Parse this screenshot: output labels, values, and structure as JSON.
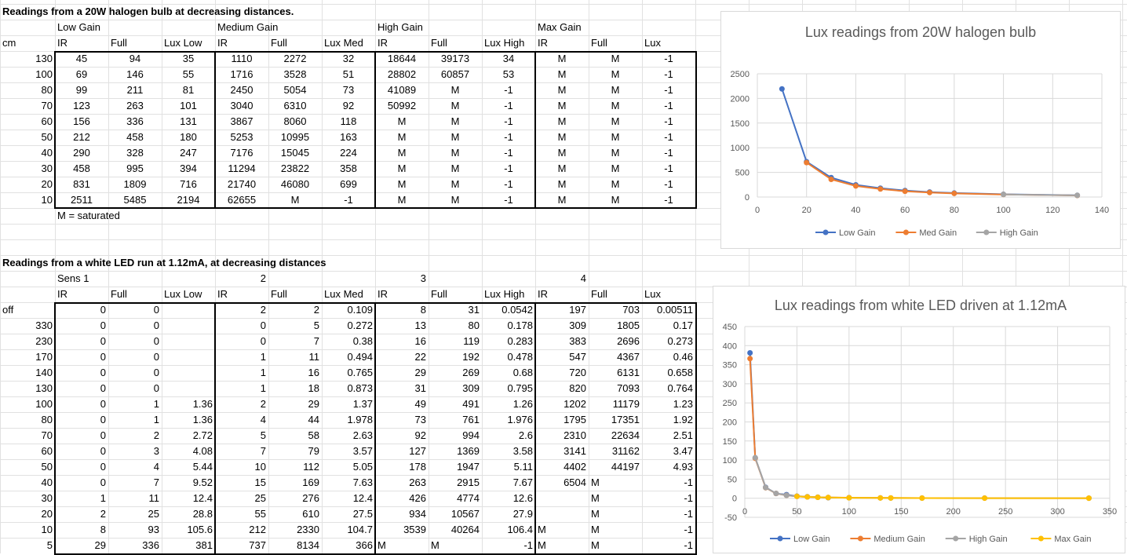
{
  "sheet": {
    "halogen": {
      "title": "Readings from a 20W halogen bulb at decreasing distances.",
      "gain_headers": [
        "Low Gain",
        "Medium Gain",
        "High Gain",
        "Max Gain"
      ],
      "col_headers": [
        "cm",
        "IR",
        "Full",
        "Lux Low",
        "IR",
        "Full",
        "Lux Med",
        "IR",
        "Full",
        "Lux High",
        "IR",
        "Full",
        "Lux"
      ],
      "rows": [
        [
          "130",
          "45",
          "94",
          "35",
          "1110",
          "2272",
          "32",
          "18644",
          "39173",
          "34",
          "M",
          "M",
          "-1"
        ],
        [
          "100",
          "69",
          "146",
          "55",
          "1716",
          "3528",
          "51",
          "28802",
          "60857",
          "53",
          "M",
          "M",
          "-1"
        ],
        [
          "80",
          "99",
          "211",
          "81",
          "2450",
          "5054",
          "73",
          "41089",
          "M",
          "-1",
          "M",
          "M",
          "-1"
        ],
        [
          "70",
          "123",
          "263",
          "101",
          "3040",
          "6310",
          "92",
          "50992",
          "M",
          "-1",
          "M",
          "M",
          "-1"
        ],
        [
          "60",
          "156",
          "336",
          "131",
          "3867",
          "8060",
          "118",
          "M",
          "M",
          "-1",
          "M",
          "M",
          "-1"
        ],
        [
          "50",
          "212",
          "458",
          "180",
          "5253",
          "10995",
          "163",
          "M",
          "M",
          "-1",
          "M",
          "M",
          "-1"
        ],
        [
          "40",
          "290",
          "328",
          "247",
          "7176",
          "15045",
          "224",
          "M",
          "M",
          "-1",
          "M",
          "M",
          "-1"
        ],
        [
          "30",
          "458",
          "995",
          "394",
          "11294",
          "23822",
          "358",
          "M",
          "M",
          "-1",
          "M",
          "M",
          "-1"
        ],
        [
          "20",
          "831",
          "1809",
          "716",
          "21740",
          "46080",
          "699",
          "M",
          "M",
          "-1",
          "M",
          "M",
          "-1"
        ],
        [
          "10",
          "2511",
          "5485",
          "2194",
          "62655",
          "M",
          "-1",
          "M",
          "M",
          "-1",
          "M",
          "M",
          "-1"
        ]
      ],
      "note": "M = saturated"
    },
    "led": {
      "title": "Readings from a white LED run at 1.12mA, at decreasing distances",
      "sens_headers": [
        "Sens 1",
        "2",
        "3",
        "4"
      ],
      "col_headers": [
        "IR",
        "Full",
        "Lux Low",
        "IR",
        "Full",
        "Lux Med",
        "IR",
        "Full",
        "Lux High",
        "IR",
        "Full",
        "Lux"
      ],
      "rows": [
        [
          "off",
          "0",
          "0",
          "",
          "2",
          "2",
          "0.109",
          "8",
          "31",
          "0.0542",
          "197",
          "703",
          "0.00511"
        ],
        [
          "330",
          "0",
          "0",
          "",
          "0",
          "5",
          "0.272",
          "13",
          "80",
          "0.178",
          "309",
          "1805",
          "0.17"
        ],
        [
          "230",
          "0",
          "0",
          "",
          "0",
          "7",
          "0.38",
          "16",
          "119",
          "0.283",
          "383",
          "2696",
          "0.273"
        ],
        [
          "170",
          "0",
          "0",
          "",
          "1",
          "11",
          "0.494",
          "22",
          "192",
          "0.478",
          "547",
          "4367",
          "0.46"
        ],
        [
          "140",
          "0",
          "0",
          "",
          "1",
          "16",
          "0.765",
          "29",
          "269",
          "0.68",
          "720",
          "6131",
          "0.658"
        ],
        [
          "130",
          "0",
          "0",
          "",
          "1",
          "18",
          "0.873",
          "31",
          "309",
          "0.795",
          "820",
          "7093",
          "0.764"
        ],
        [
          "100",
          "0",
          "1",
          "1.36",
          "2",
          "29",
          "1.37",
          "49",
          "491",
          "1.26",
          "1202",
          "11179",
          "1.23"
        ],
        [
          "80",
          "0",
          "1",
          "1.36",
          "4",
          "44",
          "1.978",
          "73",
          "761",
          "1.976",
          "1795",
          "17351",
          "1.92"
        ],
        [
          "70",
          "0",
          "2",
          "2.72",
          "5",
          "58",
          "2.63",
          "92",
          "994",
          "2.6",
          "2310",
          "22634",
          "2.51"
        ],
        [
          "60",
          "0",
          "3",
          "4.08",
          "7",
          "79",
          "3.57",
          "127",
          "1369",
          "3.58",
          "3141",
          "31162",
          "3.47"
        ],
        [
          "50",
          "0",
          "4",
          "5.44",
          "10",
          "112",
          "5.05",
          "178",
          "1947",
          "5.11",
          "4402",
          "44197",
          "4.93"
        ],
        [
          "40",
          "0",
          "7",
          "9.52",
          "15",
          "169",
          "7.63",
          "263",
          "2915",
          "7.67",
          "6504",
          "M",
          "-1"
        ],
        [
          "30",
          "1",
          "11",
          "12.4",
          "25",
          "276",
          "12.4",
          "426",
          "4774",
          "12.6",
          "",
          "M",
          "-1"
        ],
        [
          "20",
          "2",
          "25",
          "28.8",
          "55",
          "610",
          "27.5",
          "934",
          "10567",
          "27.9",
          "",
          "M",
          "-1"
        ],
        [
          "10",
          "8",
          "93",
          "105.6",
          "212",
          "2330",
          "104.7",
          "3539",
          "40264",
          "106.4",
          "M",
          "M",
          "-1"
        ],
        [
          "5",
          "29",
          "336",
          "381",
          "737",
          "8134",
          "366",
          "M",
          "M",
          "-1",
          "M",
          "M",
          "-1"
        ]
      ]
    }
  },
  "chart_data": [
    {
      "type": "line",
      "title": "Lux readings from 20W halogen bulb",
      "xlim": [
        0,
        140
      ],
      "ylim": [
        0,
        2500
      ],
      "xticks": [
        "0",
        "20",
        "40",
        "60",
        "80",
        "100",
        "120",
        "140"
      ],
      "yticks": [
        "0",
        "500",
        "1000",
        "1500",
        "2000",
        "2500"
      ],
      "legend_position": "bottom",
      "series": [
        {
          "name": "Low Gain",
          "color": "#4472C4",
          "points": [
            [
              10,
              2194
            ],
            [
              20,
              716
            ],
            [
              30,
              394
            ],
            [
              40,
              247
            ],
            [
              50,
              180
            ],
            [
              60,
              131
            ],
            [
              70,
              101
            ],
            [
              80,
              81
            ],
            [
              100,
              55
            ],
            [
              130,
              35
            ]
          ]
        },
        {
          "name": "Med Gain",
          "color": "#ED7D31",
          "points": [
            [
              20,
              699
            ],
            [
              30,
              358
            ],
            [
              40,
              224
            ],
            [
              50,
              163
            ],
            [
              60,
              118
            ],
            [
              70,
              92
            ],
            [
              80,
              73
            ],
            [
              100,
              51
            ],
            [
              130,
              32
            ]
          ]
        },
        {
          "name": "High Gain",
          "color": "#A5A5A5",
          "points": [
            [
              100,
              53
            ],
            [
              130,
              34
            ]
          ]
        }
      ]
    },
    {
      "type": "line",
      "title": "Lux readings from white LED driven at 1.12mA",
      "xlim": [
        0,
        350
      ],
      "ylim": [
        -50,
        450
      ],
      "xticks": [
        "0",
        "50",
        "100",
        "150",
        "200",
        "250",
        "300",
        "350"
      ],
      "yticks": [
        "-50",
        "0",
        "50",
        "100",
        "150",
        "200",
        "250",
        "300",
        "350",
        "400",
        "450"
      ],
      "legend_position": "bottom",
      "series": [
        {
          "name": "Low Gain",
          "color": "#4472C4",
          "points": [
            [
              5,
              381
            ],
            [
              10,
              105.6
            ],
            [
              20,
              28.8
            ],
            [
              30,
              12.4
            ],
            [
              40,
              9.52
            ],
            [
              50,
              5.44
            ],
            [
              60,
              4.08
            ],
            [
              70,
              2.72
            ],
            [
              80,
              1.36
            ],
            [
              100,
              1.36
            ]
          ]
        },
        {
          "name": "Medium Gain",
          "color": "#ED7D31",
          "points": [
            [
              5,
              366
            ],
            [
              10,
              104.7
            ],
            [
              20,
              27.5
            ],
            [
              30,
              12.4
            ],
            [
              40,
              7.63
            ],
            [
              50,
              5.05
            ],
            [
              60,
              3.57
            ],
            [
              70,
              2.63
            ],
            [
              80,
              1.978
            ],
            [
              100,
              1.37
            ],
            [
              130,
              0.873
            ],
            [
              140,
              0.765
            ],
            [
              170,
              0.494
            ],
            [
              230,
              0.38
            ],
            [
              330,
              0.272
            ]
          ]
        },
        {
          "name": "High Gain",
          "color": "#A5A5A5",
          "points": [
            [
              10,
              106.4
            ],
            [
              20,
              27.9
            ],
            [
              30,
              12.6
            ],
            [
              40,
              7.67
            ],
            [
              50,
              5.11
            ],
            [
              60,
              3.58
            ],
            [
              70,
              2.6
            ],
            [
              80,
              1.976
            ],
            [
              100,
              1.26
            ],
            [
              130,
              0.795
            ],
            [
              140,
              0.68
            ],
            [
              170,
              0.478
            ],
            [
              230,
              0.283
            ],
            [
              330,
              0.178
            ]
          ]
        },
        {
          "name": "Max Gain",
          "color": "#FFC000",
          "points": [
            [
              50,
              4.93
            ],
            [
              60,
              3.47
            ],
            [
              70,
              2.51
            ],
            [
              80,
              1.92
            ],
            [
              100,
              1.23
            ],
            [
              130,
              0.764
            ],
            [
              140,
              0.658
            ],
            [
              170,
              0.46
            ],
            [
              230,
              0.273
            ],
            [
              330,
              0.17
            ]
          ]
        }
      ]
    }
  ]
}
